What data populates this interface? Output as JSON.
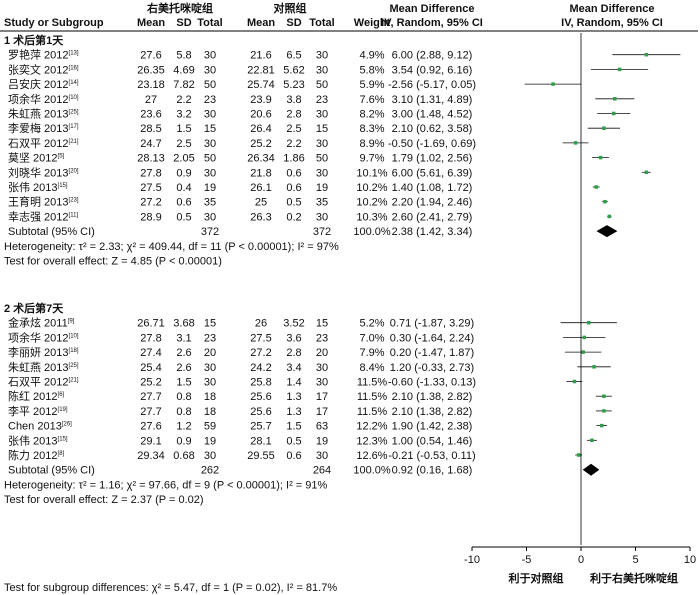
{
  "header": {
    "study_col": "Study or Subgroup",
    "exp_group": "右美托咪啶组",
    "ctl_group": "对照组",
    "mean": "Mean",
    "sd": "SD",
    "total": "Total",
    "weight": "Weight",
    "md_title": "Mean Difference",
    "md_method": "IV, Random, 95% CI",
    "plot_title": "Mean Difference",
    "plot_method": "IV, Random, 95% CI"
  },
  "chart_data": {
    "type": "forest",
    "xlim": [
      -10,
      10
    ],
    "xticks": [
      -10,
      -5,
      0,
      5,
      10
    ],
    "xtick_labels": [
      "-10",
      "-5",
      "0",
      "5",
      "10"
    ],
    "favours_left": "利于对照组",
    "favours_right": "利于右美托咪啶组",
    "subgroup_test": "Test for subgroup differences: χ² = 5.47, df = 1 (P = 0.02), I² = 81.7%",
    "groups": [
      {
        "title": "1 术后第1天",
        "studies": [
          {
            "name": "罗艳萍 2012",
            "ref": "[13]",
            "exp_mean": "27.6",
            "exp_sd": "5.8",
            "exp_n": "30",
            "ctl_mean": "21.6",
            "ctl_sd": "6.5",
            "ctl_n": "30",
            "weight": "4.9%",
            "ci_text": "6.00 (2.88, 9.12)",
            "md": 6.0,
            "lo": 2.88,
            "hi": 9.12
          },
          {
            "name": "张奕文 2012",
            "ref": "[16]",
            "exp_mean": "26.35",
            "exp_sd": "4.69",
            "exp_n": "30",
            "ctl_mean": "22.81",
            "ctl_sd": "5.62",
            "ctl_n": "30",
            "weight": "5.8%",
            "ci_text": "3.54 (0.92, 6.16)",
            "md": 3.54,
            "lo": 0.92,
            "hi": 6.16
          },
          {
            "name": "吕安庆 2012",
            "ref": "[14]",
            "exp_mean": "23.18",
            "exp_sd": "7.82",
            "exp_n": "50",
            "ctl_mean": "25.74",
            "ctl_sd": "5.23",
            "ctl_n": "50",
            "weight": "5.9%",
            "ci_text": "-2.56 (-5.17, 0.05)",
            "md": -2.56,
            "lo": -5.17,
            "hi": 0.05
          },
          {
            "name": "项余华 2012",
            "ref": "[10]",
            "exp_mean": "27",
            "exp_sd": "2.2",
            "exp_n": "23",
            "ctl_mean": "23.9",
            "ctl_sd": "3.8",
            "ctl_n": "23",
            "weight": "7.6%",
            "ci_text": "3.10 (1.31, 4.89)",
            "md": 3.1,
            "lo": 1.31,
            "hi": 4.89
          },
          {
            "name": "朱虹燕 2013",
            "ref": "[25]",
            "exp_mean": "23.6",
            "exp_sd": "3.2",
            "exp_n": "30",
            "ctl_mean": "20.6",
            "ctl_sd": "2.8",
            "ctl_n": "30",
            "weight": "8.2%",
            "ci_text": "3.00 (1.48, 4.52)",
            "md": 3.0,
            "lo": 1.48,
            "hi": 4.52
          },
          {
            "name": "李爱梅 2013",
            "ref": "[17]",
            "exp_mean": "28.5",
            "exp_sd": "1.5",
            "exp_n": "15",
            "ctl_mean": "26.4",
            "ctl_sd": "2.5",
            "ctl_n": "15",
            "weight": "8.3%",
            "ci_text": "2.10 (0.62, 3.58)",
            "md": 2.1,
            "lo": 0.62,
            "hi": 3.58
          },
          {
            "name": "石双平 2012",
            "ref": "[21]",
            "exp_mean": "24.7",
            "exp_sd": "2.5",
            "exp_n": "30",
            "ctl_mean": "25.2",
            "ctl_sd": "2.2",
            "ctl_n": "30",
            "weight": "8.9%",
            "ci_text": "-0.50 (-1.69, 0.69)",
            "md": -0.5,
            "lo": -1.69,
            "hi": 0.69
          },
          {
            "name": "莫坚 2012",
            "ref": "[5]",
            "exp_mean": "28.13",
            "exp_sd": "2.05",
            "exp_n": "50",
            "ctl_mean": "26.34",
            "ctl_sd": "1.86",
            "ctl_n": "50",
            "weight": "9.7%",
            "ci_text": "1.79 (1.02, 2.56)",
            "md": 1.79,
            "lo": 1.02,
            "hi": 2.56
          },
          {
            "name": "刘晓华 2013",
            "ref": "[20]",
            "exp_mean": "27.8",
            "exp_sd": "0.9",
            "exp_n": "30",
            "ctl_mean": "21.8",
            "ctl_sd": "0.6",
            "ctl_n": "30",
            "weight": "10.1%",
            "ci_text": "6.00 (5.61, 6.39)",
            "md": 6.0,
            "lo": 5.61,
            "hi": 6.39
          },
          {
            "name": "张伟 2013",
            "ref": "[15]",
            "exp_mean": "27.5",
            "exp_sd": "0.4",
            "exp_n": "19",
            "ctl_mean": "26.1",
            "ctl_sd": "0.6",
            "ctl_n": "19",
            "weight": "10.2%",
            "ci_text": "1.40 (1.08, 1.72)",
            "md": 1.4,
            "lo": 1.08,
            "hi": 1.72
          },
          {
            "name": "王育明 2013",
            "ref": "[23]",
            "exp_mean": "27.2",
            "exp_sd": "0.6",
            "exp_n": "35",
            "ctl_mean": "25",
            "ctl_sd": "0.5",
            "ctl_n": "35",
            "weight": "10.2%",
            "ci_text": "2.20 (1.94, 2.46)",
            "md": 2.2,
            "lo": 1.94,
            "hi": 2.46
          },
          {
            "name": "幸志强 2012",
            "ref": "[11]",
            "exp_mean": "28.9",
            "exp_sd": "0.5",
            "exp_n": "30",
            "ctl_mean": "26.3",
            "ctl_sd": "0.2",
            "ctl_n": "30",
            "weight": "10.3%",
            "ci_text": "2.60 (2.41, 2.79)",
            "md": 2.6,
            "lo": 2.41,
            "hi": 2.79
          }
        ],
        "subtotal": {
          "label": "Subtotal (95% CI)",
          "exp_n": "372",
          "ctl_n": "372",
          "weight": "100.0%",
          "ci_text": "2.38 (1.42, 3.34)",
          "md": 2.38,
          "lo": 1.42,
          "hi": 3.34
        },
        "heterogeneity": "Heterogeneity: τ² = 2.33; χ² = 409.44, df = 11 (P < 0.00001); I² = 97%",
        "overall": "Test for overall effect: Z = 4.85 (P < 0.00001)"
      },
      {
        "title": "2 术后第7天",
        "studies": [
          {
            "name": "金承炫 2011",
            "ref": "[9]",
            "exp_mean": "26.71",
            "exp_sd": "3.68",
            "exp_n": "15",
            "ctl_mean": "26",
            "ctl_sd": "3.52",
            "ctl_n": "15",
            "weight": "5.2%",
            "ci_text": "0.71 (-1.87, 3.29)",
            "md": 0.71,
            "lo": -1.87,
            "hi": 3.29
          },
          {
            "name": "项余华 2012",
            "ref": "[10]",
            "exp_mean": "27.8",
            "exp_sd": "3.1",
            "exp_n": "23",
            "ctl_mean": "27.5",
            "ctl_sd": "3.6",
            "ctl_n": "23",
            "weight": "7.0%",
            "ci_text": "0.30 (-1.64, 2.24)",
            "md": 0.3,
            "lo": -1.64,
            "hi": 2.24
          },
          {
            "name": "李丽妍 2013",
            "ref": "[18]",
            "exp_mean": "27.4",
            "exp_sd": "2.6",
            "exp_n": "20",
            "ctl_mean": "27.2",
            "ctl_sd": "2.8",
            "ctl_n": "20",
            "weight": "7.9%",
            "ci_text": "0.20 (-1.47, 1.87)",
            "md": 0.2,
            "lo": -1.47,
            "hi": 1.87
          },
          {
            "name": "朱虹燕 2013",
            "ref": "[25]",
            "exp_mean": "25.4",
            "exp_sd": "2.6",
            "exp_n": "30",
            "ctl_mean": "24.2",
            "ctl_sd": "3.4",
            "ctl_n": "30",
            "weight": "8.4%",
            "ci_text": "1.20 (-0.33, 2.73)",
            "md": 1.2,
            "lo": -0.33,
            "hi": 2.73
          },
          {
            "name": "石双平 2012",
            "ref": "[21]",
            "exp_mean": "25.2",
            "exp_sd": "1.5",
            "exp_n": "30",
            "ctl_mean": "25.8",
            "ctl_sd": "1.4",
            "ctl_n": "30",
            "weight": "11.5%",
            "ci_text": "-0.60 (-1.33, 0.13)",
            "md": -0.6,
            "lo": -1.33,
            "hi": 0.13
          },
          {
            "name": "陈红 2012",
            "ref": "[6]",
            "exp_mean": "27.7",
            "exp_sd": "0.8",
            "exp_n": "18",
            "ctl_mean": "25.6",
            "ctl_sd": "1.3",
            "ctl_n": "17",
            "weight": "11.5%",
            "ci_text": "2.10 (1.38, 2.82)",
            "md": 2.1,
            "lo": 1.38,
            "hi": 2.82
          },
          {
            "name": "李平 2012",
            "ref": "[19]",
            "exp_mean": "27.7",
            "exp_sd": "0.8",
            "exp_n": "18",
            "ctl_mean": "25.6",
            "ctl_sd": "1.3",
            "ctl_n": "17",
            "weight": "11.5%",
            "ci_text": "2.10 (1.38, 2.82)",
            "md": 2.1,
            "lo": 1.38,
            "hi": 2.82
          },
          {
            "name": "Chen 2013",
            "ref": "[26]",
            "exp_mean": "27.6",
            "exp_sd": "1.2",
            "exp_n": "59",
            "ctl_mean": "25.7",
            "ctl_sd": "1.5",
            "ctl_n": "63",
            "weight": "12.2%",
            "ci_text": "1.90 (1.42, 2.38)",
            "md": 1.9,
            "lo": 1.42,
            "hi": 2.38
          },
          {
            "name": "张伟 2013",
            "ref": "[15]",
            "exp_mean": "29.1",
            "exp_sd": "0.9",
            "exp_n": "19",
            "ctl_mean": "28.1",
            "ctl_sd": "0.5",
            "ctl_n": "19",
            "weight": "12.3%",
            "ci_text": "1.00 (0.54, 1.46)",
            "md": 1.0,
            "lo": 0.54,
            "hi": 1.46
          },
          {
            "name": "陈力 2012",
            "ref": "[8]",
            "exp_mean": "29.34",
            "exp_sd": "0.68",
            "exp_n": "30",
            "ctl_mean": "29.55",
            "ctl_sd": "0.6",
            "ctl_n": "30",
            "weight": "12.6%",
            "ci_text": "-0.21 (-0.53, 0.11)",
            "md": -0.21,
            "lo": -0.53,
            "hi": 0.11
          }
        ],
        "subtotal": {
          "label": "Subtotal (95% CI)",
          "exp_n": "262",
          "ctl_n": "264",
          "weight": "100.0%",
          "ci_text": "0.92 (0.16, 1.68)",
          "md": 0.92,
          "lo": 0.16,
          "hi": 1.68
        },
        "heterogeneity": "Heterogeneity: τ² = 1.16; χ² = 97.66, df = 9 (P < 0.00001); I² = 91%",
        "overall": "Test for overall effect: Z = 2.37 (P = 0.02)"
      }
    ],
    "colors": {
      "point": "#2e9e4a",
      "line": "#111111",
      "diamond": "#000000"
    }
  }
}
